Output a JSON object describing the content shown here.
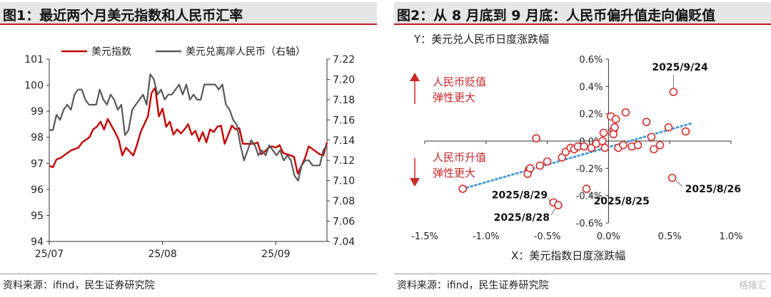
{
  "left": {
    "title": "图1：最近两个月美元指数和人民币汇率",
    "source": "资料来源：ifind，民生证券研究院",
    "chart_data": {
      "type": "line",
      "x_labels": [
        "25/07",
        "25/08",
        "25/09"
      ],
      "y_left": {
        "ticks": [
          94,
          95,
          96,
          97,
          98,
          99,
          100,
          101
        ],
        "range": [
          94,
          101
        ]
      },
      "y_right": {
        "ticks": [
          "7.04",
          "7.06",
          "7.08",
          "7.10",
          "7.12",
          "7.14",
          "7.16",
          "7.18",
          "7.20",
          "7.22"
        ],
        "range": [
          7.04,
          7.22
        ],
        "label": "（右轴）"
      },
      "series": [
        {
          "name": "美元指数",
          "color": "#c00000",
          "axis": "left",
          "values": [
            96.9,
            96.85,
            97.15,
            97.2,
            97.3,
            97.4,
            97.5,
            97.55,
            97.6,
            97.8,
            97.9,
            98.0,
            98.3,
            98.4,
            98.6,
            98.3,
            98.7,
            98.45,
            98.2,
            97.9,
            97.3,
            97.6,
            97.45,
            97.3,
            97.7,
            98.2,
            98.5,
            98.8,
            99.7,
            99.9,
            98.8,
            99.1,
            98.4,
            98.6,
            98.1,
            98.3,
            98.15,
            98.3,
            98.5,
            98.1,
            98.25,
            97.85,
            98.2,
            97.8,
            98.3,
            98.2,
            98.4,
            98.45,
            97.75,
            98.1,
            98.45,
            98.3,
            98.35,
            97.75,
            97.75,
            97.75,
            97.75,
            97.8,
            97.35,
            97.45,
            97.6,
            97.65,
            97.6,
            97.7,
            97.4,
            97.35,
            97.3,
            97.25,
            96.6,
            96.9,
            97.2,
            97.65,
            97.55,
            97.45,
            97.35,
            97.3,
            97.8
          ]
        },
        {
          "name": "美元兑离岸人民币",
          "color": "#595959",
          "axis": "right",
          "values": [
            7.15,
            7.15,
            7.165,
            7.16,
            7.17,
            7.175,
            7.17,
            7.185,
            7.19,
            7.19,
            7.18,
            7.175,
            7.175,
            7.175,
            7.19,
            7.18,
            7.175,
            7.185,
            7.18,
            7.17,
            7.175,
            7.145,
            7.15,
            7.17,
            7.175,
            7.18,
            7.185,
            7.175,
            7.205,
            7.2,
            7.185,
            7.19,
            7.18,
            7.185,
            7.185,
            7.19,
            7.195,
            7.185,
            7.195,
            7.18,
            7.185,
            7.18,
            7.18,
            7.195,
            7.195,
            7.195,
            7.195,
            7.19,
            7.195,
            7.175,
            7.17,
            7.16,
            7.155,
            7.135,
            7.12,
            7.13,
            7.14,
            7.135,
            7.125,
            7.13,
            7.125,
            7.135,
            7.13,
            7.125,
            7.13,
            7.12,
            7.125,
            7.12,
            7.105,
            7.1,
            7.115,
            7.12,
            7.12,
            7.115,
            7.115,
            7.115,
            7.13,
            7.135
          ]
        }
      ]
    }
  },
  "right": {
    "title": "图2：从 8 月底到 9 月底：人民币偏升值走向偏贬值",
    "source": "资料来源：ifind，民生证券研究院",
    "chart_data": {
      "type": "scatter",
      "ylabel": "Y：美元兑人民币日度涨跌幅",
      "xlabel": "X：美元指数日度涨跌幅",
      "x_ticks": [
        "-1.5%",
        "-1.0%",
        "-0.5%",
        "0.0%",
        "0.5%",
        "1.0%"
      ],
      "x_range": [
        -1.5,
        1.0
      ],
      "y_ticks": [
        "-0.6%",
        "-0.4%",
        "-0.2%",
        "0.0%",
        "0.2%",
        "0.4%",
        "0.6%"
      ],
      "y_range": [
        -0.6,
        0.6
      ],
      "points": [
        {
          "x": -1.19,
          "y": -0.35
        },
        {
          "x": -0.65,
          "y": -0.21
        },
        {
          "x": -0.66,
          "y": -0.24
        },
        {
          "x": -0.64,
          "y": -0.2
        },
        {
          "x": -0.59,
          "y": 0.02
        },
        {
          "x": -0.56,
          "y": -0.18
        },
        {
          "x": -0.5,
          "y": -0.15
        },
        {
          "x": -0.45,
          "y": -0.45
        },
        {
          "x": -0.41,
          "y": -0.47
        },
        {
          "x": -0.38,
          "y": -0.12
        },
        {
          "x": -0.35,
          "y": -0.08
        },
        {
          "x": -0.31,
          "y": -0.05
        },
        {
          "x": -0.28,
          "y": -0.06
        },
        {
          "x": -0.25,
          "y": -0.04
        },
        {
          "x": -0.2,
          "y": -0.04
        },
        {
          "x": -0.18,
          "y": -0.35
        },
        {
          "x": -0.14,
          "y": -0.05
        },
        {
          "x": -0.1,
          "y": -0.02
        },
        {
          "x": -0.05,
          "y": 0.0
        },
        {
          "x": -0.04,
          "y": 0.06
        },
        {
          "x": -0.03,
          "y": -0.05
        },
        {
          "x": 0.02,
          "y": 0.18
        },
        {
          "x": 0.04,
          "y": 0.08
        },
        {
          "x": 0.05,
          "y": 0.1
        },
        {
          "x": 0.06,
          "y": 0.16
        },
        {
          "x": 0.04,
          "y": 0.05
        },
        {
          "x": 0.08,
          "y": -0.05
        },
        {
          "x": 0.12,
          "y": -0.03
        },
        {
          "x": 0.14,
          "y": 0.21
        },
        {
          "x": 0.19,
          "y": -0.04
        },
        {
          "x": 0.24,
          "y": -0.03
        },
        {
          "x": 0.31,
          "y": 0.14
        },
        {
          "x": 0.35,
          "y": 0.03
        },
        {
          "x": 0.37,
          "y": -0.06
        },
        {
          "x": 0.42,
          "y": -0.03
        },
        {
          "x": 0.49,
          "y": 0.1
        },
        {
          "x": 0.52,
          "y": -0.27
        },
        {
          "x": 0.53,
          "y": 0.36
        },
        {
          "x": 0.63,
          "y": 0.07
        }
      ],
      "trendline": {
        "x1": -1.19,
        "y1": -0.35,
        "x2": 0.68,
        "y2": 0.13
      },
      "labels": [
        {
          "text": "2025/9/24",
          "x": 0.53,
          "y": 0.36,
          "pos": "above"
        },
        {
          "text": "2025/8/26",
          "x": 0.52,
          "y": -0.27,
          "pos": "right"
        },
        {
          "text": "2025/8/25",
          "x": -0.18,
          "y": -0.35,
          "pos": "right-below"
        },
        {
          "text": "2025/8/29",
          "x": -0.45,
          "y": -0.45,
          "pos": "left-up"
        },
        {
          "text": "2025/8/28",
          "x": -0.41,
          "y": -0.47,
          "pos": "left-down"
        }
      ],
      "annotations": {
        "up_text_1": "人民币贬值",
        "up_text_2": "弹性更大",
        "down_text_1": "人民币升值",
        "down_text_2": "弹性更大"
      }
    }
  },
  "watermark": "格隆汇"
}
